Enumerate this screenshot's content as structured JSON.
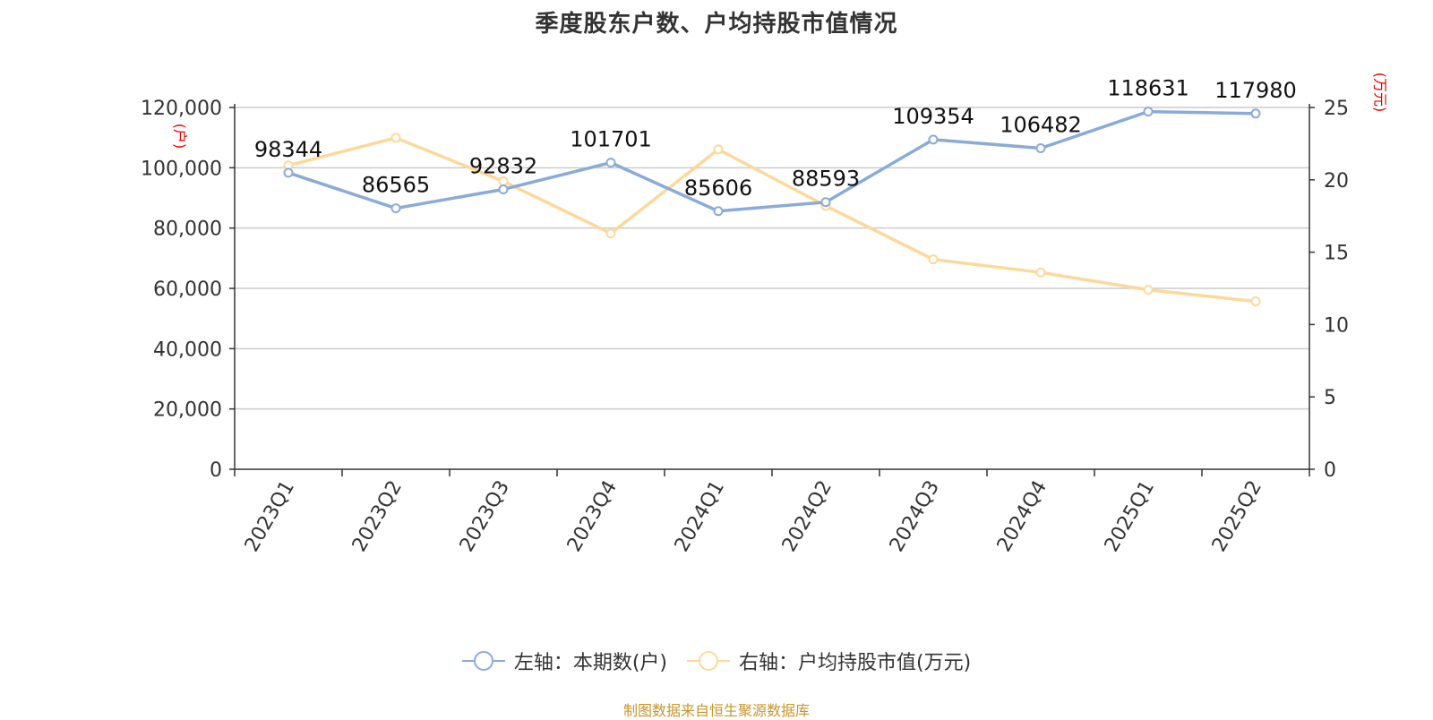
{
  "title": "季度股东户数、户均持股市值情况",
  "source_text": "制图数据来自恒生聚源数据库",
  "legend": {
    "left_label": "左轴：本期数(户)",
    "right_label": "右轴：户均持股市值(万元)"
  },
  "colors": {
    "holders": "#8aabd8",
    "avg_value": "#fcd99a",
    "axis_unit": "#e60000",
    "grid": "#cccccc",
    "source": "#c8952a"
  },
  "chart_data": {
    "type": "line",
    "categories": [
      "2023Q1",
      "2023Q2",
      "2023Q3",
      "2023Q4",
      "2024Q1",
      "2024Q2",
      "2024Q3",
      "2024Q4",
      "2025Q1",
      "2025Q2"
    ],
    "left_axis": {
      "unit_label": "(户)",
      "range": [
        0,
        120000
      ],
      "ticks": [
        0,
        20000,
        40000,
        60000,
        80000,
        100000,
        120000
      ],
      "tick_labels": [
        "0",
        "20,000",
        "40,000",
        "60,000",
        "80,000",
        "100,000",
        "120,000"
      ]
    },
    "right_axis": {
      "unit_label": "(万元)",
      "range": [
        0,
        25
      ],
      "ticks": [
        0,
        5,
        10,
        15,
        20,
        25
      ],
      "tick_labels": [
        "0",
        "5",
        "10",
        "15",
        "20",
        "25"
      ]
    },
    "series": [
      {
        "name": "左轴：本期数(户)",
        "axis": "left",
        "values": [
          98344,
          86565,
          92832,
          101701,
          85606,
          88593,
          109354,
          106482,
          118631,
          117980
        ],
        "data_labels": [
          "98344",
          "86565",
          "92832",
          "101701",
          "85606",
          "88593",
          "109354",
          "106482",
          "118631",
          "117980"
        ]
      },
      {
        "name": "右轴：户均持股市值(万元)",
        "axis": "right",
        "values": [
          21.0,
          22.9,
          19.9,
          16.3,
          22.1,
          18.2,
          14.5,
          13.6,
          12.4,
          11.6
        ]
      }
    ],
    "grid": true,
    "legend_position": "bottom"
  }
}
